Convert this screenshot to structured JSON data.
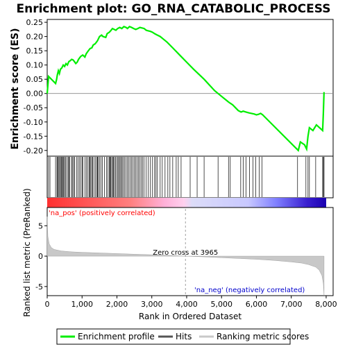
{
  "chart_data": {
    "type": "line",
    "title": "Enrichment plot: GO_RNA_CATABOLIC_PROCESS",
    "es_panel": {
      "ylabel": "Enrichment score (ES)",
      "ylim": [
        -0.22,
        0.26
      ],
      "yticks": [
        "0.25",
        "0.20",
        "0.15",
        "0.10",
        "0.05",
        "0.00",
        "-0.05",
        "-0.10",
        "-0.15",
        "-0.20"
      ],
      "ytick_values": [
        0.25,
        0.2,
        0.15,
        0.1,
        0.05,
        0.0,
        -0.05,
        -0.1,
        -0.15,
        -0.2
      ],
      "grid": false,
      "series": [
        {
          "name": "Enrichment profile",
          "color": "#00ee00",
          "x": [
            0,
            40,
            240,
            270,
            290,
            320,
            350,
            380,
            420,
            460,
            500,
            540,
            580,
            620,
            660,
            700,
            740,
            780,
            820,
            860,
            900,
            960,
            1020,
            1080,
            1120,
            1180,
            1230,
            1280,
            1320,
            1380,
            1440,
            1500,
            1560,
            1600,
            1680,
            1720,
            1780,
            1820,
            1870,
            1920,
            1970,
            2020,
            2080,
            2140,
            2200,
            2260,
            2300,
            2360,
            2420,
            2480,
            2540,
            2600,
            2660,
            2720,
            2780,
            2840,
            2900,
            2960,
            3020,
            3080,
            3160,
            3240,
            3340,
            3440,
            3600,
            3800,
            4000,
            4200,
            4500,
            4800,
            5000,
            5100,
            5200,
            5260,
            5320,
            5400,
            5480,
            5560,
            5620,
            5700,
            5780,
            5860,
            5940,
            6000,
            6060,
            6120,
            6180,
            7200,
            7260,
            7380,
            7440,
            7480,
            7520,
            7620,
            7720,
            7900,
            7920,
            7940
          ],
          "y": [
            0.0,
            0.06,
            0.035,
            0.05,
            0.065,
            0.08,
            0.07,
            0.085,
            0.09,
            0.1,
            0.095,
            0.105,
            0.1,
            0.112,
            0.115,
            0.12,
            0.118,
            0.112,
            0.105,
            0.11,
            0.12,
            0.13,
            0.135,
            0.128,
            0.14,
            0.15,
            0.158,
            0.16,
            0.17,
            0.175,
            0.185,
            0.2,
            0.205,
            0.2,
            0.197,
            0.21,
            0.215,
            0.22,
            0.228,
            0.225,
            0.222,
            0.228,
            0.232,
            0.228,
            0.235,
            0.232,
            0.228,
            0.235,
            0.232,
            0.228,
            0.225,
            0.228,
            0.232,
            0.23,
            0.228,
            0.222,
            0.22,
            0.218,
            0.215,
            0.21,
            0.205,
            0.2,
            0.19,
            0.18,
            0.16,
            0.135,
            0.11,
            0.085,
            0.05,
            0.01,
            -0.01,
            -0.02,
            -0.03,
            -0.035,
            -0.04,
            -0.05,
            -0.06,
            -0.065,
            -0.062,
            -0.065,
            -0.068,
            -0.07,
            -0.072,
            -0.075,
            -0.073,
            -0.07,
            -0.075,
            -0.2,
            -0.17,
            -0.18,
            -0.195,
            -0.15,
            -0.12,
            -0.13,
            -0.11,
            -0.13,
            -0.07,
            0.005
          ]
        }
      ]
    },
    "hits_panel": {
      "hit_positions": [
        40,
        80,
        240,
        280,
        300,
        320,
        350,
        380,
        400,
        420,
        450,
        470,
        500,
        520,
        560,
        600,
        620,
        650,
        700,
        720,
        760,
        780,
        840,
        880,
        920,
        960,
        1000,
        1020,
        1080,
        1120,
        1160,
        1200,
        1220,
        1250,
        1280,
        1300,
        1340,
        1380,
        1420,
        1440,
        1460,
        1500,
        1540,
        1580,
        1640,
        1700,
        1740,
        1780,
        1800,
        1820,
        1850,
        1880,
        1900,
        1930,
        1960,
        2000,
        2030,
        2060,
        2090,
        2120,
        2150,
        2180,
        2220,
        2260,
        2300,
        2340,
        2380,
        2420,
        2460,
        2500,
        2540,
        2580,
        2620,
        2660,
        2700,
        2740,
        2780,
        2840,
        2900,
        2960,
        3020,
        3080,
        3120,
        3160,
        3240,
        3300,
        3380,
        3460,
        3520,
        3600,
        3700,
        3760,
        3840,
        4100,
        4300,
        4500,
        4900,
        5200,
        5250,
        5550,
        5620,
        5700,
        5800,
        5900,
        5980,
        6080,
        6160,
        7180,
        7420,
        7480,
        7520,
        7700,
        7900,
        7920,
        7940
      ],
      "color_bar": [
        "#ff3333",
        "#ff6666",
        "#ff9999",
        "#ffc0e8",
        "#d8d8f8",
        "#c8c8ff",
        "#9090ff",
        "#4444dd",
        "#1a00b0"
      ]
    },
    "rank_panel": {
      "ylabel": "Ranked list metric (PreRanked)",
      "xlabel": "Rank in Ordered Dataset",
      "ylim": [
        -6.5,
        8.0
      ],
      "yticks": [
        "5",
        "0",
        "-5"
      ],
      "ytick_values": [
        5,
        0,
        -5
      ],
      "xlim": [
        0,
        8200
      ],
      "xticks": [
        "0",
        "1,000",
        "2,000",
        "3,000",
        "4,000",
        "5,000",
        "6,000",
        "7,000",
        "8,000"
      ],
      "xtick_values": [
        0,
        1000,
        2000,
        3000,
        4000,
        5000,
        6000,
        7000,
        8000
      ],
      "zero_cross": 3965,
      "zero_cross_label": "Zero cross at 3965",
      "pos_label": "'na_pos' (positively correlated)",
      "neg_label": "'na_neg' (negatively correlated)",
      "pos_color": "#ff0000",
      "neg_color": "#0000cc",
      "metric_x": [
        0,
        20,
        60,
        120,
        200,
        400,
        700,
        1000,
        1500,
        2000,
        2500,
        3000,
        3500,
        3965,
        4500,
        5000,
        5500,
        6000,
        6500,
        7000,
        7300,
        7500,
        7700,
        7800,
        7880,
        7920,
        7940
      ],
      "metric_y": [
        6.5,
        3.2,
        2.0,
        1.4,
        1.1,
        0.85,
        0.7,
        0.62,
        0.52,
        0.42,
        0.32,
        0.22,
        0.12,
        0.0,
        -0.12,
        -0.25,
        -0.38,
        -0.52,
        -0.7,
        -0.95,
        -1.15,
        -1.4,
        -1.8,
        -2.3,
        -3.2,
        -4.5,
        -6.5
      ]
    },
    "legend": {
      "entries": [
        {
          "label": "Enrichment profile",
          "color": "#00ee00"
        },
        {
          "label": "Hits",
          "color": "#555555"
        },
        {
          "label": "Ranking metric scores",
          "color": "#c0c0c0"
        }
      ]
    }
  }
}
